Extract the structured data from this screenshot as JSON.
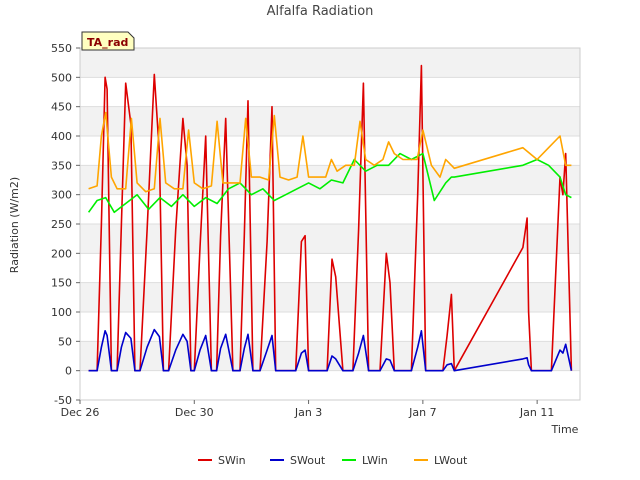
{
  "chart_data": {
    "type": "line",
    "title": "Alfalfa Radiation",
    "badge": "TA_rad",
    "xlabel": "Time",
    "ylabel": "Radiation (W/m2)",
    "xlim": [
      0,
      17.5
    ],
    "ylim": [
      -50,
      550
    ],
    "yticks": [
      -50,
      0,
      50,
      100,
      150,
      200,
      250,
      300,
      350,
      400,
      450,
      500,
      550
    ],
    "xticks": [
      {
        "value": 0,
        "label": "Dec 26"
      },
      {
        "value": 4,
        "label": "Dec 30"
      },
      {
        "value": 8,
        "label": "Jan 3"
      },
      {
        "value": 12,
        "label": "Jan 7"
      },
      {
        "value": 16,
        "label": "Jan 11"
      }
    ],
    "grid": true,
    "legend_position": "bottom",
    "series": [
      {
        "name": "SWin",
        "color": "#dd0000",
        "x": [
          0.3,
          0.6,
          0.75,
          0.88,
          0.95,
          1.1,
          1.3,
          1.45,
          1.6,
          1.78,
          1.92,
          2.1,
          2.35,
          2.6,
          2.78,
          2.92,
          3.1,
          3.35,
          3.6,
          3.75,
          3.88,
          4.0,
          4.2,
          4.4,
          4.6,
          4.78,
          4.92,
          5.1,
          5.35,
          5.6,
          5.75,
          5.88,
          6.05,
          6.3,
          6.55,
          6.72,
          6.85,
          7.05,
          7.3,
          7.55,
          7.75,
          7.88,
          8.0,
          8.2,
          8.45,
          8.65,
          8.82,
          8.95,
          9.2,
          9.4,
          9.55,
          9.75,
          9.92,
          10.1,
          10.3,
          10.5,
          10.72,
          10.85,
          11.0,
          11.3,
          11.6,
          11.82,
          11.95,
          12.1,
          12.4,
          12.7,
          12.85,
          13.0,
          13.1,
          15.5,
          15.65,
          15.7,
          15.8,
          16.1,
          16.5,
          16.8,
          16.9,
          17.0,
          17.2
        ],
        "y": [
          0,
          0,
          250,
          500,
          480,
          0,
          0,
          250,
          490,
          420,
          0,
          0,
          240,
          505,
          370,
          0,
          0,
          240,
          430,
          350,
          0,
          0,
          210,
          400,
          0,
          0,
          230,
          430,
          0,
          0,
          230,
          460,
          0,
          0,
          220,
          450,
          0,
          0,
          0,
          0,
          220,
          230,
          0,
          0,
          0,
          0,
          190,
          160,
          0,
          0,
          0,
          240,
          490,
          0,
          0,
          0,
          200,
          150,
          0,
          0,
          0,
          300,
          520,
          0,
          0,
          0,
          60,
          130,
          0,
          210,
          260,
          100,
          0,
          0,
          0,
          330,
          300,
          370,
          0
        ]
      },
      {
        "name": "SWout",
        "color": "#0000cc",
        "x": [
          0.3,
          0.6,
          0.75,
          0.88,
          0.95,
          1.1,
          1.3,
          1.45,
          1.6,
          1.78,
          1.92,
          2.1,
          2.35,
          2.6,
          2.78,
          2.92,
          3.1,
          3.35,
          3.6,
          3.75,
          3.88,
          4.0,
          4.2,
          4.4,
          4.6,
          4.78,
          4.92,
          5.1,
          5.35,
          5.6,
          5.75,
          5.88,
          6.05,
          6.3,
          6.55,
          6.72,
          6.85,
          7.05,
          7.3,
          7.55,
          7.75,
          7.88,
          8.0,
          8.2,
          8.45,
          8.65,
          8.82,
          8.95,
          9.2,
          9.4,
          9.55,
          9.75,
          9.92,
          10.1,
          10.3,
          10.5,
          10.72,
          10.85,
          11.0,
          11.3,
          11.6,
          11.82,
          11.95,
          12.1,
          12.4,
          12.7,
          12.85,
          13.0,
          13.1,
          15.5,
          15.65,
          15.7,
          15.8,
          16.1,
          16.5,
          16.8,
          16.9,
          17.0,
          17.2
        ],
        "y": [
          0,
          0,
          40,
          68,
          60,
          0,
          0,
          40,
          65,
          55,
          0,
          0,
          40,
          70,
          58,
          0,
          0,
          35,
          62,
          50,
          0,
          0,
          35,
          60,
          0,
          0,
          38,
          62,
          0,
          0,
          38,
          62,
          0,
          0,
          35,
          60,
          0,
          0,
          0,
          0,
          30,
          35,
          0,
          0,
          0,
          0,
          25,
          20,
          0,
          0,
          0,
          30,
          60,
          0,
          0,
          0,
          20,
          18,
          0,
          0,
          0,
          40,
          68,
          0,
          0,
          0,
          10,
          12,
          0,
          20,
          22,
          10,
          0,
          0,
          0,
          35,
          30,
          45,
          0
        ]
      },
      {
        "name": "LWin",
        "color": "#00ee00",
        "x": [
          0.3,
          0.6,
          0.9,
          1.2,
          1.6,
          2.0,
          2.4,
          2.8,
          3.2,
          3.6,
          4.0,
          4.4,
          4.8,
          5.2,
          5.6,
          6.0,
          6.4,
          6.8,
          7.2,
          7.6,
          8.0,
          8.4,
          8.8,
          9.2,
          9.6,
          10.0,
          10.4,
          10.8,
          11.2,
          11.6,
          12.0,
          12.4,
          12.8,
          13.0,
          13.1,
          15.5,
          16.0,
          16.4,
          16.8,
          17.0,
          17.2
        ],
        "y": [
          270,
          290,
          295,
          270,
          285,
          300,
          275,
          295,
          280,
          300,
          280,
          295,
          285,
          310,
          320,
          300,
          310,
          290,
          300,
          310,
          320,
          310,
          325,
          320,
          360,
          340,
          350,
          350,
          370,
          360,
          370,
          290,
          320,
          330,
          330,
          350,
          360,
          350,
          330,
          300,
          295
        ]
      },
      {
        "name": "LWout",
        "color": "#ffa500",
        "x": [
          0.3,
          0.6,
          0.75,
          0.9,
          1.1,
          1.3,
          1.6,
          1.8,
          2.0,
          2.3,
          2.6,
          2.8,
          3.0,
          3.3,
          3.6,
          3.8,
          4.0,
          4.3,
          4.6,
          4.8,
          5.0,
          5.3,
          5.6,
          5.8,
          6.0,
          6.3,
          6.6,
          6.8,
          7.0,
          7.3,
          7.6,
          7.8,
          8.0,
          8.2,
          8.6,
          8.8,
          9.0,
          9.3,
          9.6,
          9.8,
          10.0,
          10.3,
          10.6,
          10.8,
          11.0,
          11.3,
          11.6,
          11.8,
          12.0,
          12.3,
          12.6,
          12.8,
          13.0,
          13.1,
          15.5,
          16.0,
          16.4,
          16.8,
          17.0,
          17.2
        ],
        "y": [
          310,
          315,
          400,
          440,
          330,
          310,
          310,
          430,
          320,
          305,
          310,
          430,
          320,
          310,
          310,
          410,
          320,
          310,
          315,
          425,
          320,
          320,
          320,
          430,
          330,
          330,
          325,
          435,
          330,
          325,
          330,
          400,
          330,
          330,
          330,
          360,
          340,
          350,
          350,
          425,
          360,
          350,
          360,
          390,
          370,
          360,
          360,
          360,
          410,
          350,
          330,
          360,
          350,
          345,
          380,
          360,
          380,
          400,
          350,
          350
        ]
      }
    ]
  },
  "legend_items": [
    {
      "label": "SWin",
      "color": "#dd0000"
    },
    {
      "label": "SWout",
      "color": "#0000cc"
    },
    {
      "label": "LWin",
      "color": "#00ee00"
    },
    {
      "label": "LWout",
      "color": "#ffa500"
    }
  ]
}
